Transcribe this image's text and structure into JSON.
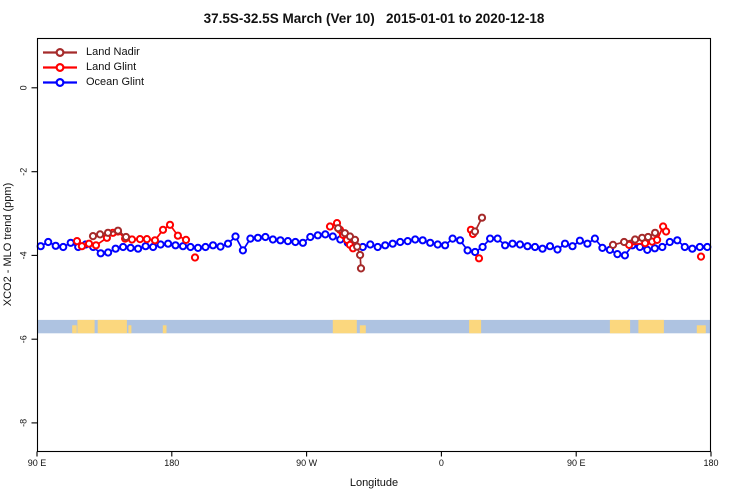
{
  "window": {
    "title": "37.5S-32.5S March (Ver 10)   2015-01-01 to 2020-12-18"
  },
  "chart_data": {
    "type": "line",
    "title": "37.5S-32.5S March (Ver 10)   2015-01-01 to 2020-12-18",
    "xlabel": "Longitude",
    "ylabel": "XCO2 - MLO trend (ppm)",
    "grid": "off",
    "legend_position": "top-left",
    "x_axis": {
      "range_unwrapped_deg": [
        90,
        540
      ],
      "ticks_unwrapped_deg": [
        90,
        180,
        270,
        360,
        450,
        540
      ],
      "tick_labels": [
        "90 E",
        "180",
        "90 W",
        "0",
        "90 E",
        "180"
      ]
    },
    "y_axis": {
      "range": [
        1.19,
        -8.67
      ],
      "ticks": [
        0,
        -2,
        -4,
        -6,
        -8
      ],
      "tick_labels": [
        "0",
        "-2",
        "-4",
        "-6",
        "-8"
      ]
    },
    "legend": [
      {
        "label": "Land Nadir",
        "color": "#A52A2A"
      },
      {
        "label": "Land Glint",
        "color": "#FF0000"
      },
      {
        "label": "Ocean Glint",
        "color": "#0000FF"
      }
    ],
    "series": [
      {
        "name": "Land Nadir",
        "color": "#A52A2A",
        "segments": [
          [
            [
              127.4,
              -3.54
            ],
            [
              132.1,
              -3.5
            ],
            [
              137.4,
              -3.46
            ],
            [
              144.1,
              -3.41
            ],
            [
              149.4,
              -3.56
            ]
          ],
          [
            [
              291.0,
              -3.35
            ],
            [
              295.6,
              -3.47
            ],
            [
              299.0,
              -3.55
            ],
            [
              302.3,
              -3.63
            ],
            [
              303.7,
              -3.79
            ],
            [
              305.7,
              -3.99
            ],
            [
              306.3,
              -4.31
            ]
          ],
          [
            [
              382.4,
              -3.43
            ],
            [
              387.1,
              -3.1
            ]
          ],
          [
            [
              474.6,
              -3.75
            ],
            [
              482.0,
              -3.68
            ],
            [
              489.3,
              -3.62
            ],
            [
              494.0,
              -3.58
            ],
            [
              498.0,
              -3.56
            ],
            [
              502.7,
              -3.46
            ]
          ]
        ]
      },
      {
        "name": "Land Glint",
        "color": "#FF0000",
        "segments": [
          [
            [
              116.7,
              -3.66
            ],
            [
              120.0,
              -3.78
            ],
            [
              124.7,
              -3.72
            ],
            [
              129.4,
              -3.76
            ],
            [
              136.7,
              -3.58
            ],
            [
              140.7,
              -3.46
            ],
            [
              144.1,
              -3.43
            ],
            [
              148.8,
              -3.6
            ],
            [
              153.4,
              -3.62
            ],
            [
              158.8,
              -3.61
            ],
            [
              163.4,
              -3.61
            ],
            [
              168.8,
              -3.64
            ],
            [
              174.1,
              -3.39
            ],
            [
              178.8,
              -3.27
            ],
            [
              184.1,
              -3.53
            ],
            [
              189.5,
              -3.63
            ]
          ],
          [
            [
              195.5,
              -4.05
            ]
          ],
          [
            [
              285.6,
              -3.31
            ],
            [
              290.3,
              -3.23
            ],
            [
              292.3,
              -3.39
            ],
            [
              294.3,
              -3.51
            ],
            [
              297.0,
              -3.63
            ],
            [
              299.0,
              -3.75
            ],
            [
              301.0,
              -3.83
            ]
          ],
          [
            [
              379.7,
              -3.39
            ],
            [
              381.1,
              -3.49
            ]
          ],
          [
            [
              385.1,
              -4.07
            ]
          ],
          [
            [
              485.3,
              -3.75
            ],
            [
              496.0,
              -3.71
            ],
            [
              500.7,
              -3.67
            ],
            [
              504.0,
              -3.63
            ],
            [
              508.0,
              -3.31
            ],
            [
              510.0,
              -3.43
            ]
          ],
          [
            [
              533.3,
              -4.03
            ]
          ]
        ]
      },
      {
        "name": "Ocean Glint",
        "color": "#0000FF",
        "lon_start": 92.5,
        "lon_step": 5,
        "values": [
          -3.78,
          -3.68,
          -3.77,
          -3.8,
          -3.7,
          -3.8,
          -3.74,
          -3.8,
          -3.95,
          -3.93,
          -3.84,
          -3.8,
          -3.82,
          -3.84,
          -3.78,
          -3.8,
          -3.74,
          -3.72,
          -3.76,
          -3.78,
          -3.8,
          -3.82,
          -3.8,
          -3.76,
          -3.79,
          -3.72,
          -3.55,
          -3.88,
          -3.6,
          -3.58,
          -3.56,
          -3.62,
          -3.64,
          -3.66,
          -3.68,
          -3.7,
          -3.56,
          -3.52,
          -3.5,
          -3.55,
          -3.62,
          -3.7,
          -3.76,
          -3.8,
          -3.74,
          -3.8,
          -3.76,
          -3.72,
          -3.68,
          -3.66,
          -3.62,
          -3.64,
          -3.7,
          -3.74,
          -3.76,
          -3.6,
          -3.64,
          -3.88,
          -3.92,
          -3.8,
          -3.6,
          -3.6,
          -3.76,
          -3.72,
          -3.74,
          -3.78,
          -3.8,
          -3.84,
          -3.78,
          -3.86,
          -3.72,
          -3.78,
          -3.65,
          -3.72,
          -3.6,
          -3.82,
          -3.87,
          -3.97,
          -4.0,
          -3.76,
          -3.8,
          -3.87,
          -3.83,
          -3.8,
          -3.68,
          -3.64,
          -3.8,
          -3.84,
          -3.8,
          -3.8
        ]
      }
    ],
    "map_strip": {
      "top_ppm": -5.54,
      "bottom_ppm": -5.86,
      "ocean_color": "#AEC3E1",
      "land_color": "#FBD77E",
      "land_patches": [
        [
          113.5,
          116.5,
          "bottom"
        ],
        [
          117.0,
          128.5,
          "full"
        ],
        [
          130.5,
          150.0,
          "full"
        ],
        [
          151.0,
          153.0,
          "bottom"
        ],
        [
          174.0,
          176.5,
          "bottom"
        ],
        [
          287.5,
          303.5,
          "full"
        ],
        [
          305.5,
          309.5,
          "bottom"
        ],
        [
          378.5,
          386.5,
          "full"
        ],
        [
          472.5,
          486.0,
          "full"
        ],
        [
          491.5,
          508.5,
          "full"
        ],
        [
          530.5,
          536.5,
          "bottom"
        ]
      ]
    }
  }
}
